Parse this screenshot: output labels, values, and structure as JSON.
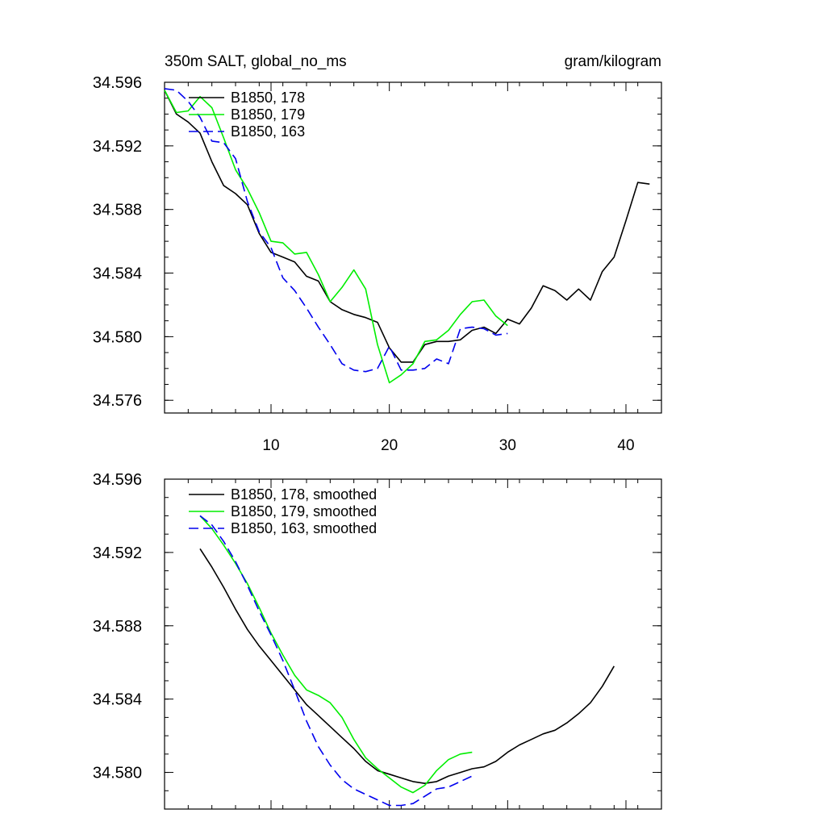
{
  "chart_data": [
    {
      "type": "line",
      "title": "350m SALT, global_no_ms",
      "units": "gram/kilogram",
      "xlim": [
        1,
        43
      ],
      "ylim": [
        34.5752,
        34.596
      ],
      "y_major_ticks": [
        34.576,
        34.58,
        34.584,
        34.588,
        34.592,
        34.596
      ],
      "y_tick_labels": [
        "34.576",
        "34.580",
        "34.584",
        "34.588",
        "34.592",
        "34.596"
      ],
      "x_major_ticks": [
        10,
        20,
        30,
        40
      ],
      "x_tick_labels": [
        "10",
        "20",
        "30",
        "40"
      ],
      "legend_position": "top-left",
      "series": [
        {
          "name": "B1850, 178",
          "color": "#000000",
          "dash": "solid",
          "x": [
            1,
            2,
            3,
            4,
            5,
            6,
            7,
            8,
            9,
            10,
            11,
            12,
            13,
            14,
            15,
            16,
            17,
            18,
            19,
            20,
            21,
            22,
            23,
            24,
            25,
            26,
            27,
            28,
            29,
            30,
            31,
            32,
            33,
            34,
            35,
            36,
            37,
            38,
            39,
            40,
            41,
            42
          ],
          "y": [
            34.5955,
            34.594,
            34.5935,
            34.5928,
            34.591,
            34.5895,
            34.589,
            34.5883,
            34.5865,
            34.5853,
            34.585,
            34.5847,
            34.5838,
            34.5835,
            34.5822,
            34.5817,
            34.5814,
            34.5812,
            34.5809,
            34.5793,
            34.5784,
            34.5784,
            34.5795,
            34.5797,
            34.5797,
            34.5798,
            34.5804,
            34.5806,
            34.5802,
            34.5811,
            34.5808,
            34.5818,
            34.5832,
            34.5829,
            34.5823,
            34.583,
            34.5823,
            34.5841,
            34.585,
            34.5873,
            34.5897,
            34.5896
          ]
        },
        {
          "name": "B1850, 179",
          "color": "#00ee00",
          "dash": "solid",
          "x": [
            1,
            2,
            3,
            4,
            5,
            6,
            7,
            8,
            9,
            10,
            11,
            12,
            13,
            14,
            15,
            16,
            17,
            18,
            19,
            20,
            21,
            22,
            23,
            24,
            25,
            26,
            27,
            28,
            29,
            30
          ],
          "y": [
            34.5955,
            34.5941,
            34.5942,
            34.5951,
            34.5944,
            34.5925,
            34.5905,
            34.5893,
            34.5878,
            34.586,
            34.5859,
            34.5852,
            34.5853,
            34.5839,
            34.5822,
            34.5831,
            34.5842,
            34.583,
            34.5795,
            34.5771,
            34.5776,
            34.5783,
            34.5797,
            34.5798,
            34.5804,
            34.5814,
            34.5822,
            34.5823,
            34.5813,
            34.5807
          ]
        },
        {
          "name": "B1850, 163",
          "color": "#0000ee",
          "dash": "dashed",
          "x": [
            1,
            2,
            3,
            4,
            5,
            6,
            7,
            8,
            9,
            10,
            11,
            12,
            13,
            14,
            15,
            16,
            17,
            18,
            19,
            20,
            21,
            22,
            23,
            24,
            25,
            26,
            27,
            28,
            29,
            30
          ],
          "y": [
            34.5956,
            34.5955,
            34.5948,
            34.5938,
            34.5923,
            34.5922,
            34.5912,
            34.5885,
            34.5866,
            34.5856,
            34.5837,
            34.5829,
            34.5818,
            34.5806,
            34.5795,
            34.5783,
            34.5779,
            34.5778,
            34.578,
            34.5794,
            34.5779,
            34.5779,
            34.578,
            34.5786,
            34.5783,
            34.5805,
            34.5806,
            34.5805,
            34.5801,
            34.5802
          ]
        }
      ]
    },
    {
      "type": "line",
      "xlim": [
        1,
        43
      ],
      "ylim": [
        34.578,
        34.596
      ],
      "y_major_ticks": [
        34.58,
        34.584,
        34.588,
        34.592,
        34.596
      ],
      "y_tick_labels": [
        "34.580",
        "34.584",
        "34.588",
        "34.592",
        "34.596"
      ],
      "x_major_ticks": [
        10,
        20,
        30,
        40
      ],
      "legend_position": "top-left",
      "series": [
        {
          "name": "B1850, 178, smoothed",
          "color": "#000000",
          "dash": "solid",
          "x": [
            4,
            5,
            6,
            7,
            8,
            9,
            10,
            11,
            12,
            13,
            14,
            15,
            16,
            17,
            18,
            19,
            20,
            21,
            22,
            23,
            24,
            25,
            26,
            27,
            28,
            29,
            30,
            31,
            32,
            33,
            34,
            35,
            36,
            37,
            38,
            39
          ],
          "y": [
            34.5922,
            34.5912,
            34.5901,
            34.5889,
            34.5878,
            34.5869,
            34.5861,
            34.5853,
            34.5845,
            34.5837,
            34.5831,
            34.5825,
            34.5819,
            34.5813,
            34.5806,
            34.5801,
            34.5799,
            34.5797,
            34.5795,
            34.5794,
            34.5795,
            34.5798,
            34.58,
            34.5802,
            34.5803,
            34.5806,
            34.5811,
            34.5815,
            34.5818,
            34.5821,
            34.5823,
            34.5827,
            34.5832,
            34.5838,
            34.5847,
            34.5858
          ]
        },
        {
          "name": "B1850, 179, smoothed",
          "color": "#00ee00",
          "dash": "solid",
          "x": [
            4,
            5,
            6,
            7,
            8,
            9,
            10,
            11,
            12,
            13,
            14,
            15,
            16,
            17,
            18,
            19,
            20,
            21,
            22,
            23,
            24,
            25,
            26,
            27
          ],
          "y": [
            34.594,
            34.5933,
            34.5924,
            34.5914,
            34.5903,
            34.589,
            34.5876,
            34.5864,
            34.5853,
            34.5845,
            34.5842,
            34.5838,
            34.583,
            34.5818,
            34.5808,
            34.5802,
            34.5797,
            34.5792,
            34.5789,
            34.5793,
            34.5801,
            34.5807,
            34.581,
            34.5811
          ]
        },
        {
          "name": "B1850, 163, smoothed",
          "color": "#0000ee",
          "dash": "dashed",
          "x": [
            4,
            5,
            6,
            7,
            8,
            9,
            10,
            11,
            12,
            13,
            14,
            15,
            16,
            17,
            18,
            19,
            20,
            21,
            22,
            23,
            24,
            25,
            26,
            27
          ],
          "y": [
            34.594,
            34.5935,
            34.5926,
            34.5915,
            34.5902,
            34.5888,
            34.5875,
            34.5861,
            34.5845,
            34.5828,
            34.5814,
            34.5804,
            34.5796,
            34.5791,
            34.5788,
            34.5785,
            34.5782,
            34.5782,
            34.5783,
            34.5787,
            34.5791,
            34.5792,
            34.5795,
            34.5798
          ]
        }
      ]
    }
  ]
}
